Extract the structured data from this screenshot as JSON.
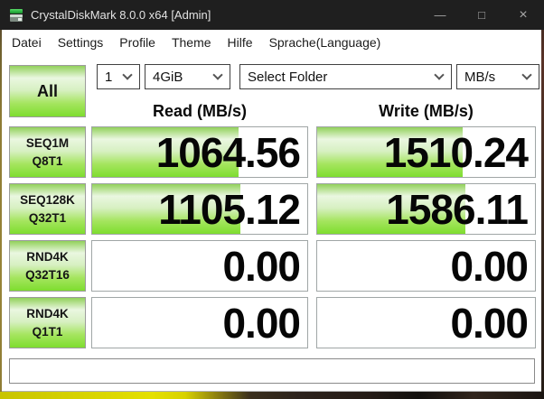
{
  "window": {
    "title": "CrystalDiskMark 8.0.0 x64 [Admin]",
    "controls": {
      "minimize": "—",
      "maximize": "□",
      "close": "×"
    }
  },
  "menu": {
    "items": [
      "Datei",
      "Settings",
      "Profile",
      "Theme",
      "Hilfe",
      "Sprache(Language)"
    ]
  },
  "toolbar": {
    "all_button": "All",
    "test_count": "1",
    "test_size": "4GiB",
    "target": "Select Folder",
    "unit": "MB/s"
  },
  "results": {
    "read_header": "Read (MB/s)",
    "write_header": "Write (MB/s)",
    "rows": [
      {
        "label_line1": "SEQ1M",
        "label_line2": "Q8T1",
        "read": "1064.56",
        "write": "1510.24",
        "read_fill": 68,
        "write_fill": 67
      },
      {
        "label_line1": "SEQ128K",
        "label_line2": "Q32T1",
        "read": "1105.12",
        "write": "1586.11",
        "read_fill": 69,
        "write_fill": 68
      },
      {
        "label_line1": "RND4K",
        "label_line2": "Q32T16",
        "read": "0.00",
        "write": "0.00",
        "read_fill": 0,
        "write_fill": 0
      },
      {
        "label_line1": "RND4K",
        "label_line2": "Q1T1",
        "read": "0.00",
        "write": "0.00",
        "read_fill": 0,
        "write_fill": 0
      }
    ]
  },
  "status_bar": {
    "text": ""
  },
  "colors": {
    "titlebar_bg": "#1f1f1f",
    "green_top": "#92d15b",
    "green_pale": "#eaf7e0",
    "green_bright": "#7edd2f"
  }
}
